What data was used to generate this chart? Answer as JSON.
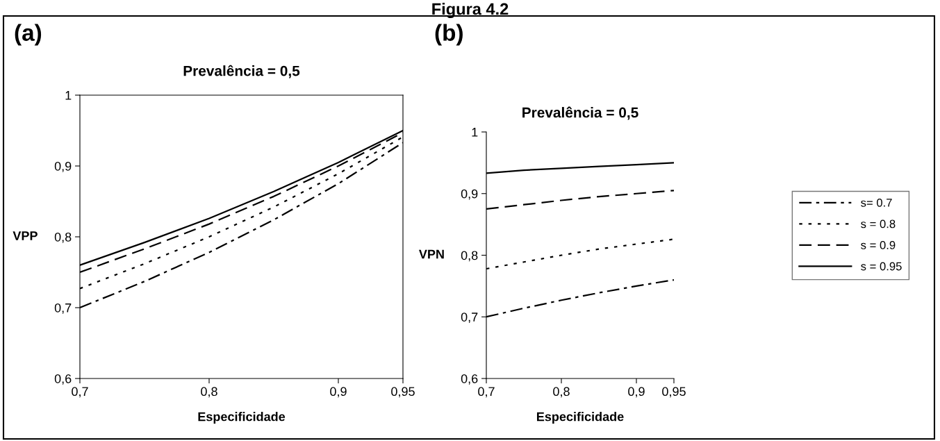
{
  "chart_data": [
    {
      "type": "line",
      "title": "Prevalência = 0,5",
      "xlabel": "Especificidade",
      "ylabel": "VPP",
      "annotations": [
        "Figura 4.2",
        "(a)"
      ],
      "x": [
        0.7,
        0.75,
        0.8,
        0.85,
        0.9,
        0.95
      ],
      "series": [
        {
          "color": "#000000",
          "line_style": "dashdot",
          "values": [
            0.7,
            0.737,
            0.778,
            0.824,
            0.875,
            0.933
          ]
        },
        {
          "color": "#000000",
          "line_style": "dotted",
          "values": [
            0.727,
            0.762,
            0.8,
            0.842,
            0.889,
            0.941
          ]
        },
        {
          "color": "#000000",
          "line_style": "dashed",
          "values": [
            0.75,
            0.783,
            0.818,
            0.857,
            0.9,
            0.947
          ]
        },
        {
          "color": "#000000",
          "line_style": "solid",
          "values": [
            0.76,
            0.792,
            0.826,
            0.864,
            0.905,
            0.95
          ]
        }
      ],
      "xlim": [
        0.7,
        0.95
      ],
      "xticks": [
        {
          "value": 0.7,
          "label": "0,7"
        },
        {
          "value": 0.8,
          "label": "0,8"
        },
        {
          "value": 0.9,
          "label": "0,9"
        },
        {
          "value": 0.95,
          "label": "0,95"
        }
      ],
      "ylim": [
        0.6,
        1
      ],
      "yticks": [
        {
          "value": 0.6,
          "label": "0,6"
        },
        {
          "value": 0.7,
          "label": "0,7"
        },
        {
          "value": 0.8,
          "label": "0,8"
        },
        {
          "value": 0.9,
          "label": "0,9"
        },
        1
      ],
      "grid": false,
      "legend": false
    },
    {
      "type": "line",
      "title": "Prevalência = 0,5",
      "xlabel": "Especificidade",
      "ylabel": "VPN",
      "annotations": [
        "(b)"
      ],
      "x": [
        0.7,
        0.75,
        0.8,
        0.85,
        0.9,
        0.95
      ],
      "series": [
        {
          "name": "s= 0.7",
          "color": "#000000",
          "line_style": "dashdot",
          "values": [
            0.7,
            0.714,
            0.727,
            0.739,
            0.75,
            0.76
          ]
        },
        {
          "name": "s = 0.8",
          "color": "#000000",
          "line_style": "dotted",
          "values": [
            0.778,
            0.789,
            0.8,
            0.81,
            0.818,
            0.826
          ]
        },
        {
          "name": "s = 0.9",
          "color": "#000000",
          "line_style": "dashed",
          "values": [
            0.875,
            0.882,
            0.889,
            0.895,
            0.9,
            0.905
          ]
        },
        {
          "name": "s = 0.95",
          "color": "#000000",
          "line_style": "solid",
          "values": [
            0.933,
            0.938,
            0.941,
            0.944,
            0.947,
            0.95
          ]
        }
      ],
      "xlim": [
        0.7,
        0.95
      ],
      "xticks": [
        {
          "value": 0.7,
          "label": "0,7"
        },
        {
          "value": 0.8,
          "label": "0,8"
        },
        {
          "value": 0.9,
          "label": "0,9"
        },
        {
          "value": 0.95,
          "label": "0,95"
        }
      ],
      "ylim": [
        0.6,
        1
      ],
      "yticks": [
        {
          "value": 0.6,
          "label": "0,6"
        },
        {
          "value": 0.7,
          "label": "0,7"
        },
        {
          "value": 0.8,
          "label": "0,8"
        },
        {
          "value": 0.9,
          "label": "0,9"
        },
        1
      ],
      "grid": false,
      "legend": "right"
    }
  ]
}
